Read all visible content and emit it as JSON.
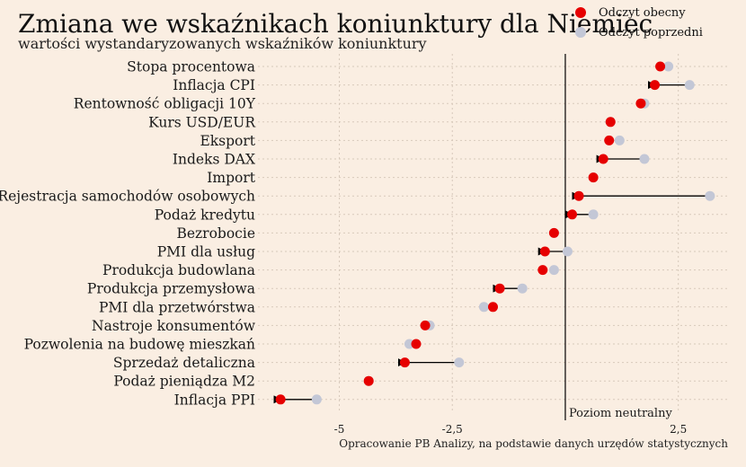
{
  "chart_data": {
    "type": "scatter",
    "title": "Zmiana we wskaźnikach koniunktury dla Niemiec",
    "subtitle": "wartości wystandaryzowanych wskaźników koniunktury",
    "xlim": [
      -6.8,
      3.6
    ],
    "x_ticks": [
      -5,
      -2.5,
      0,
      2.5
    ],
    "x_tick_labels": [
      "-5",
      "-2,5",
      "",
      "2,5"
    ],
    "grid": true,
    "legend_position": "top-right",
    "neutral_line": {
      "x": 0,
      "label": "Poziom neutralny"
    },
    "categories": [
      "Stopa procentowa",
      "Inflacja CPI",
      "Rentowność obligacji 10Y",
      "Kurs USD/EUR",
      "Eksport",
      "Indeks DAX",
      "Import",
      "Rejestracja samochodów osobowych",
      "Podaż kredytu",
      "Bezrobocie",
      "PMI dla usług",
      "Produkcja budowlana",
      "Produkcja przemysłowa",
      "PMI dla przetwórstwa",
      "Nastroje konsumentów",
      "Pozwolenia na budowę mieszkań",
      "Sprzedaż detaliczna",
      "Podaż pieniądza M2",
      "Inflacja PPI"
    ],
    "series": [
      {
        "name": "Odczyt obecny",
        "color": "#e60000",
        "values": [
          2.1,
          1.98,
          1.67,
          1.0,
          0.97,
          0.84,
          0.62,
          0.3,
          0.15,
          -0.25,
          -0.45,
          -0.5,
          -1.45,
          -1.6,
          -3.1,
          -3.3,
          -3.55,
          -4.35,
          -6.3
        ]
      },
      {
        "name": "Odczyt poprzedni",
        "color": "#c3c7d6",
        "values": [
          2.28,
          2.75,
          1.75,
          1.0,
          1.2,
          1.75,
          0.62,
          3.2,
          0.62,
          -0.25,
          0.05,
          -0.25,
          -0.95,
          -1.8,
          -3.0,
          -3.45,
          -2.35,
          -4.35,
          -5.5
        ]
      }
    ]
  },
  "source_note": "Opracowanie PB Analizy, na podstawie danych urzędów statystycznych"
}
